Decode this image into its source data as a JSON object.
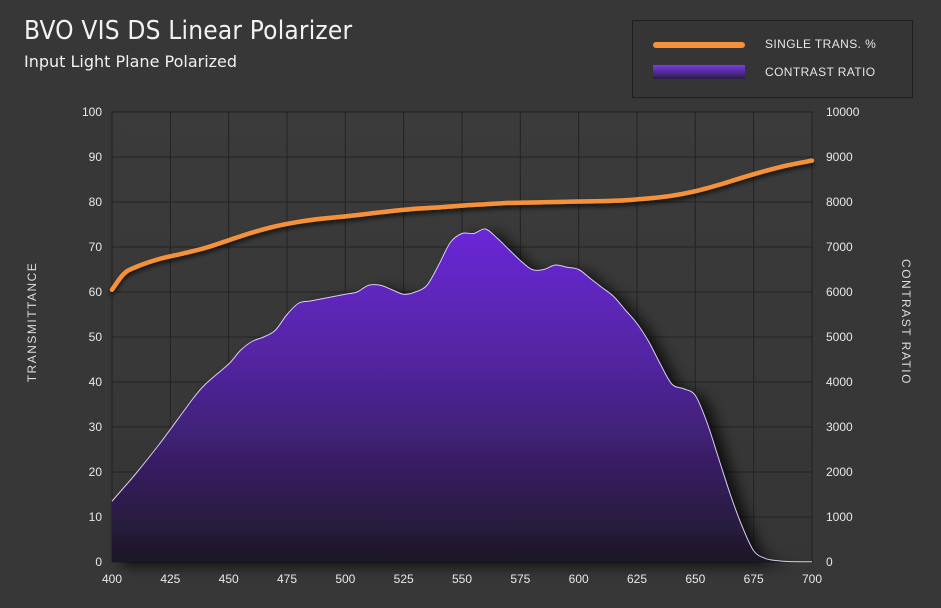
{
  "header": {
    "title": "BVO VIS DS Linear Polarizer",
    "subtitle": "Input Light Plane Polarized"
  },
  "legend": {
    "items": [
      {
        "label": "SINGLE TRANS. %",
        "color": "#f5913a"
      },
      {
        "label": "CONTRAST RATIO",
        "color": "#6a28d0"
      }
    ]
  },
  "chart_data": {
    "type": "line",
    "title": "BVO VIS DS Linear Polarizer",
    "subtitle": "Input Light Plane Polarized",
    "xlabel": "",
    "ylabel": "TRANSMITTANCE",
    "y2label": "CONTRAST RATIO",
    "xlim": [
      400,
      700
    ],
    "ylim": [
      0,
      100
    ],
    "y2lim": [
      0,
      10000
    ],
    "x_ticks": [
      400,
      425,
      450,
      475,
      500,
      525,
      550,
      575,
      600,
      625,
      650,
      675,
      700
    ],
    "y_ticks": [
      0,
      10,
      20,
      30,
      40,
      50,
      60,
      70,
      80,
      90,
      100
    ],
    "y2_ticks": [
      0,
      1000,
      2000,
      3000,
      4000,
      5000,
      6000,
      7000,
      8000,
      9000,
      10000
    ],
    "grid": true,
    "legend_position": "top-right",
    "series": [
      {
        "name": "SINGLE TRANS. %",
        "type": "line",
        "axis": "left",
        "color": "#f5913a",
        "x": [
          400,
          405,
          410,
          420,
          430,
          440,
          450,
          460,
          470,
          480,
          490,
          500,
          510,
          520,
          530,
          540,
          550,
          560,
          570,
          580,
          590,
          600,
          610,
          620,
          630,
          640,
          650,
          660,
          670,
          680,
          690,
          700
        ],
        "y": [
          60.5,
          64.0,
          65.5,
          67.3,
          68.5,
          69.8,
          71.5,
          73.2,
          74.6,
          75.6,
          76.3,
          76.8,
          77.4,
          78.0,
          78.5,
          78.8,
          79.2,
          79.5,
          79.8,
          79.9,
          80.0,
          80.1,
          80.2,
          80.4,
          80.8,
          81.4,
          82.4,
          83.8,
          85.4,
          86.9,
          88.2,
          89.2
        ]
      },
      {
        "name": "CONTRAST RATIO",
        "type": "area",
        "axis": "right",
        "color": "#6a28d0",
        "x": [
          400,
          405,
          410,
          420,
          430,
          435,
          440,
          450,
          455,
          460,
          465,
          470,
          475,
          480,
          485,
          490,
          495,
          500,
          505,
          510,
          515,
          520,
          525,
          530,
          535,
          540,
          545,
          550,
          555,
          560,
          565,
          570,
          575,
          580,
          585,
          590,
          595,
          600,
          605,
          610,
          615,
          620,
          625,
          630,
          635,
          640,
          645,
          650,
          655,
          660,
          665,
          670,
          675,
          680,
          685,
          690,
          695,
          700
        ],
        "y": [
          1350,
          1650,
          1950,
          2600,
          3300,
          3650,
          3950,
          4400,
          4700,
          4900,
          5000,
          5150,
          5500,
          5750,
          5800,
          5850,
          5900,
          5950,
          6000,
          6150,
          6150,
          6050,
          5950,
          6000,
          6150,
          6600,
          7100,
          7300,
          7300,
          7400,
          7200,
          6950,
          6700,
          6500,
          6500,
          6600,
          6550,
          6500,
          6300,
          6100,
          5900,
          5600,
          5300,
          4900,
          4400,
          3950,
          3850,
          3700,
          3100,
          2300,
          1500,
          800,
          250,
          80,
          30,
          10,
          5,
          5
        ]
      }
    ]
  }
}
